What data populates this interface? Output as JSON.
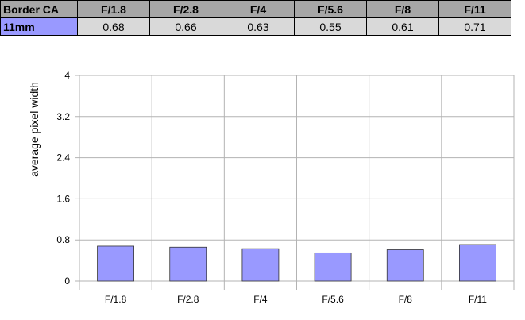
{
  "table": {
    "header": [
      "Border CA",
      "F/1.8",
      "F/2.8",
      "F/4",
      "F/5.6",
      "F/8",
      "F/11"
    ],
    "row_label": "11mm",
    "cells": [
      "0.68",
      "0.66",
      "0.63",
      "0.55",
      "0.61",
      "0.71"
    ]
  },
  "chart_data": {
    "type": "bar",
    "y_label": "average pixel width",
    "categories": [
      "F/1.8",
      "F/2.8",
      "F/4",
      "F/5.6",
      "F/8",
      "F/11"
    ],
    "values": [
      0.68,
      0.66,
      0.63,
      0.55,
      0.61,
      0.71
    ],
    "color": "#9999ff",
    "ylim": [
      0,
      4
    ],
    "yticks": [
      0,
      0.8,
      1.6,
      2.4,
      3.2,
      4
    ],
    "grid": true
  }
}
